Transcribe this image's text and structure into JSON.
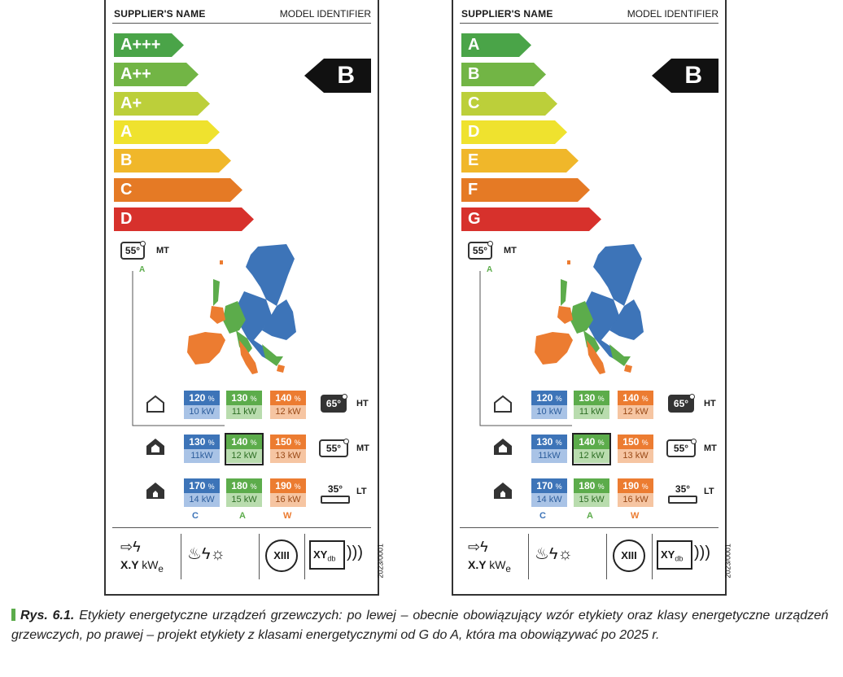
{
  "labels": [
    {
      "supplier": "SUPPLIER'S NAME",
      "model": "MODEL IDENTIFIER",
      "classes": [
        "A+++",
        "A++",
        "A+",
        "A",
        "B",
        "C",
        "D"
      ],
      "rating": "B",
      "mt_temp": "55°",
      "mt_label": "MT",
      "mt_class_letter": "A",
      "rows": [
        {
          "temp": "65°",
          "code": "HT",
          "c": [
            "120",
            "10 kW"
          ],
          "a": [
            "130",
            "11 kW"
          ],
          "w": [
            "140",
            "12 kW"
          ]
        },
        {
          "temp": "55°",
          "code": "MT",
          "c": [
            "130",
            "11kW"
          ],
          "a": [
            "140",
            "12 kW"
          ],
          "w": [
            "150",
            "13 kW"
          ]
        },
        {
          "temp": "35°",
          "code": "LT",
          "c": [
            "170",
            "14 kW"
          ],
          "a": [
            "180",
            "15 kW"
          ],
          "w": [
            "190",
            "16 kW"
          ]
        }
      ],
      "col_labels": [
        "C",
        "A",
        "W"
      ],
      "footer": {
        "power": "X.Y",
        "unit": "kW",
        "sub": "e",
        "noise": "XY",
        "noise_sub": "db",
        "regulation": "2023/0001",
        "roman": "XIII"
      }
    },
    {
      "supplier": "SUPPLIER'S NAME",
      "model": "MODEL IDENTIFIER",
      "classes": [
        "A",
        "B",
        "C",
        "D",
        "E",
        "F",
        "G"
      ],
      "rating": "B",
      "mt_temp": "55°",
      "mt_label": "MT",
      "mt_class_letter": "A",
      "rows": [
        {
          "temp": "65°",
          "code": "HT",
          "c": [
            "120",
            "10 kW"
          ],
          "a": [
            "130",
            "11 kW"
          ],
          "w": [
            "140",
            "12 kW"
          ]
        },
        {
          "temp": "55°",
          "code": "MT",
          "c": [
            "130",
            "11kW"
          ],
          "a": [
            "140",
            "12 kW"
          ],
          "w": [
            "150",
            "13 kW"
          ]
        },
        {
          "temp": "35°",
          "code": "LT",
          "c": [
            "170",
            "14 kW"
          ],
          "a": [
            "180",
            "15 kW"
          ],
          "w": [
            "190",
            "16 kW"
          ]
        }
      ],
      "col_labels": [
        "C",
        "A",
        "W"
      ],
      "footer": {
        "power": "X.Y",
        "unit": "kW",
        "sub": "e",
        "noise": "XY",
        "noise_sub": "db",
        "regulation": "2023/0001",
        "roman": "XIII"
      }
    }
  ],
  "percent_sign": "%",
  "class_colors": [
    "#4aa448",
    "#72b545",
    "#bccf3a",
    "#efe22e",
    "#f0b72a",
    "#e57a25",
    "#d7312c"
  ],
  "caption": {
    "ref": "Rys. 6.1.",
    "text": "Etykiety energetyczne urządzeń grzewczych: po lewej – obecnie obowiązujący wzór etykiety oraz klasy energetyczne urządzeń grzewczych, po prawej – projekt etykiety z klasami energetycznymi od G do A, która ma obowiązywać po 2025 r."
  }
}
